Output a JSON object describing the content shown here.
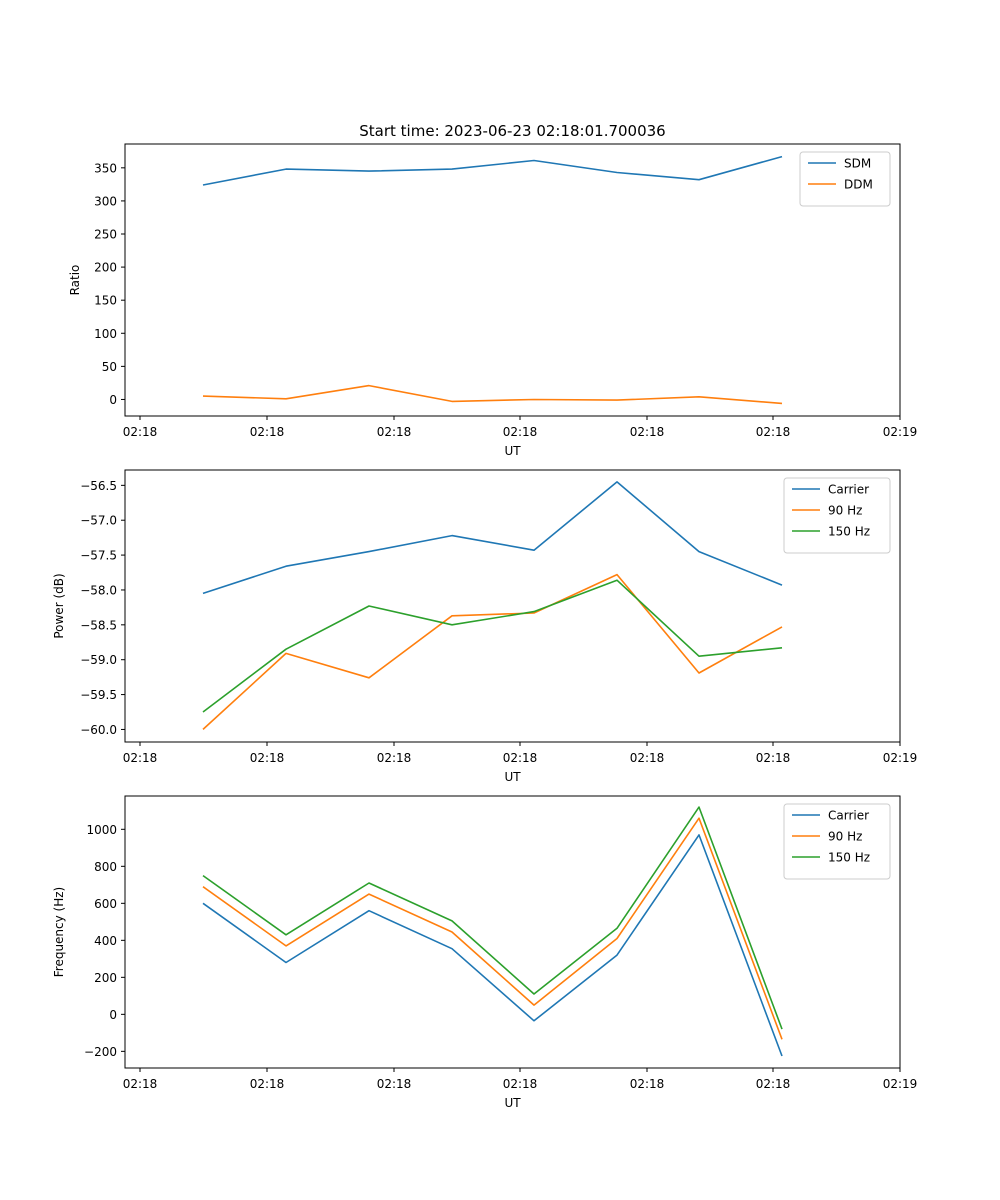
{
  "title": "Start time: 2023-06-23 02:18:01.700036",
  "chart_data": [
    {
      "type": "line",
      "title": "Start time: 2023-06-23 02:18:01.700036",
      "xlabel": "UT",
      "ylabel": "Ratio",
      "x_tick_labels": [
        "02:18",
        "02:18",
        "02:18",
        "02:18",
        "02:18",
        "02:18",
        "02:19"
      ],
      "y_ticks": [
        0,
        50,
        100,
        150,
        200,
        250,
        300,
        350
      ],
      "ylim": [
        -25,
        386
      ],
      "x_points": 8,
      "legend": "top-right",
      "grid": false,
      "series": [
        {
          "name": "SDM",
          "color": "#1f77b4",
          "values": [
            324,
            348,
            345,
            348,
            361,
            343,
            332,
            367
          ]
        },
        {
          "name": "DDM",
          "color": "#ff7f0e",
          "values": [
            5,
            1,
            21,
            -3,
            0,
            -1,
            4,
            -6
          ]
        }
      ]
    },
    {
      "type": "line",
      "title": "",
      "xlabel": "UT",
      "ylabel": "Power (dB)",
      "x_tick_labels": [
        "02:18",
        "02:18",
        "02:18",
        "02:18",
        "02:18",
        "02:18",
        "02:19"
      ],
      "y_ticks": [
        -60.0,
        -59.5,
        -59.0,
        -58.5,
        -58.0,
        -57.5,
        -57.0,
        -56.5
      ],
      "y_tick_labels": [
        "−60.0",
        "−59.5",
        "−59.0",
        "−58.5",
        "−58.0",
        "−57.5",
        "−57.0",
        "−56.5"
      ],
      "ylim": [
        -60.18,
        -56.28
      ],
      "x_points": 8,
      "legend": "top-right",
      "grid": false,
      "series": [
        {
          "name": "Carrier",
          "color": "#1f77b4",
          "values": [
            -58.05,
            -57.66,
            -57.45,
            -57.22,
            -57.43,
            -56.45,
            -57.45,
            -57.93
          ]
        },
        {
          "name": "90 Hz",
          "color": "#ff7f0e",
          "values": [
            -60.0,
            -58.91,
            -59.26,
            -58.37,
            -58.33,
            -57.78,
            -59.19,
            -58.53
          ]
        },
        {
          "name": "150 Hz",
          "color": "#2ca02c",
          "values": [
            -59.75,
            -58.85,
            -58.23,
            -58.5,
            -58.31,
            -57.86,
            -58.95,
            -58.83
          ]
        }
      ]
    },
    {
      "type": "line",
      "title": "",
      "xlabel": "UT",
      "ylabel": "Frequency (Hz)",
      "x_tick_labels": [
        "02:18",
        "02:18",
        "02:18",
        "02:18",
        "02:18",
        "02:18",
        "02:19"
      ],
      "y_ticks": [
        -200,
        0,
        200,
        400,
        600,
        800,
        1000
      ],
      "y_tick_labels": [
        "−200",
        "0",
        "200",
        "400",
        "600",
        "800",
        "1000"
      ],
      "ylim": [
        -290,
        1180
      ],
      "x_points": 8,
      "legend": "top-right",
      "grid": false,
      "series": [
        {
          "name": "Carrier",
          "color": "#1f77b4",
          "values": [
            600,
            280,
            560,
            355,
            -35,
            320,
            970,
            -225
          ]
        },
        {
          "name": "90 Hz",
          "color": "#ff7f0e",
          "values": [
            690,
            370,
            650,
            445,
            50,
            410,
            1060,
            -135
          ]
        },
        {
          "name": "150 Hz",
          "color": "#2ca02c",
          "values": [
            750,
            430,
            710,
            505,
            110,
            465,
            1120,
            -80
          ]
        }
      ]
    }
  ]
}
